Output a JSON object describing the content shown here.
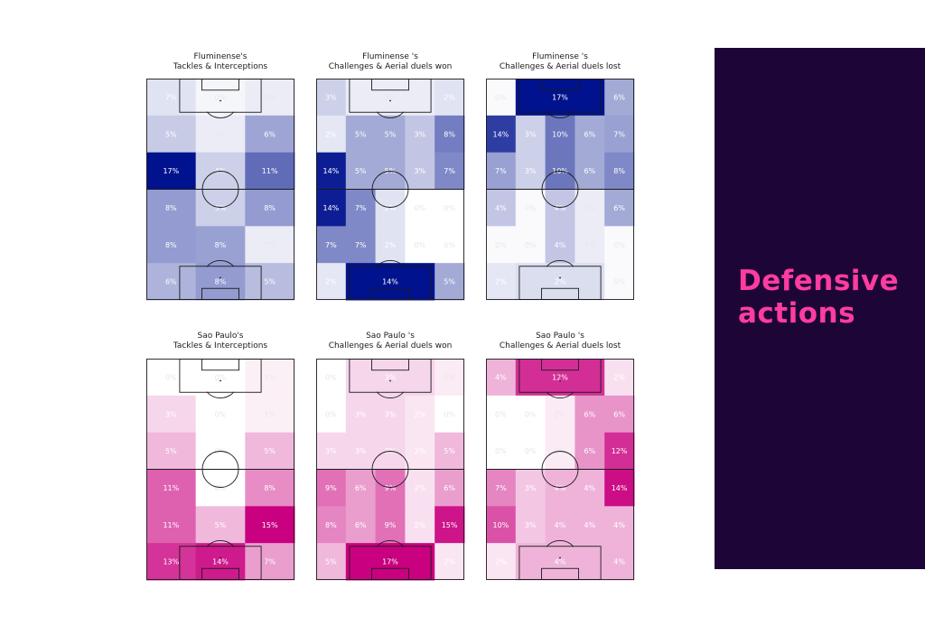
{
  "side_panel": {
    "title_line1": "Defensive",
    "title_line2": "actions",
    "bg": "#1d0637",
    "accent": "#ff3ca0"
  },
  "colors": {
    "fluminense_scale": [
      "#ffffff",
      "#00128e"
    ],
    "saopaulo_scale": [
      "#ffffff",
      "#c9007f"
    ]
  },
  "chart_data": [
    {
      "type": "heatmap",
      "team": "fluminense",
      "title_line1": "Fluminense's",
      "title_line2": "Tackles & Interceptions",
      "rows": [
        {
          "cols": [
            {
              "w": 1,
              "v": "7%",
              "i": 0.12
            },
            {
              "w": 1,
              "v": "0%",
              "i": 0.04
            },
            {
              "w": 1,
              "v": "4%",
              "i": 0.08
            }
          ]
        },
        {
          "cols": [
            {
              "w": 1,
              "v": "5%",
              "i": 0.22
            },
            {
              "w": 1,
              "v": "4%",
              "i": 0.08
            },
            {
              "w": 1,
              "v": "6%",
              "i": 0.38
            }
          ]
        },
        {
          "cols": [
            {
              "w": 1,
              "v": "17%",
              "i": 1.0
            },
            {
              "w": 1,
              "v": "4%",
              "i": 0.2
            },
            {
              "w": 1,
              "v": "11%",
              "i": 0.62
            }
          ]
        },
        {
          "cols": [
            {
              "w": 1,
              "v": "8%",
              "i": 0.42
            },
            {
              "w": 1,
              "v": "3%",
              "i": 0.2
            },
            {
              "w": 1,
              "v": "8%",
              "i": 0.42
            }
          ]
        },
        {
          "cols": [
            {
              "w": 1,
              "v": "8%",
              "i": 0.42
            },
            {
              "w": 1,
              "v": "8%",
              "i": 0.4
            },
            {
              "w": 1,
              "v": "2%",
              "i": 0.08
            }
          ]
        },
        {
          "cols": [
            {
              "w": 1,
              "v": "6%",
              "i": 0.32
            },
            {
              "w": 1,
              "v": "8%",
              "i": 0.42
            },
            {
              "w": 1,
              "v": "5%",
              "i": 0.28
            }
          ]
        }
      ]
    },
    {
      "type": "heatmap",
      "team": "fluminense",
      "title_line1": "Fluminense 's",
      "title_line2": "Challenges & Aerial duels won",
      "rows": [
        {
          "cols": [
            {
              "w": 1,
              "v": "3%",
              "i": 0.2
            },
            {
              "w": 3,
              "v": "3%",
              "i": 0.08
            },
            {
              "w": 1,
              "v": "2%",
              "i": 0.12
            }
          ]
        },
        {
          "cols": [
            {
              "w": 1,
              "v": "2%",
              "i": 0.1
            },
            {
              "w": 1,
              "v": "5%",
              "i": 0.36
            },
            {
              "w": 1,
              "v": "5%",
              "i": 0.36
            },
            {
              "w": 1,
              "v": "3%",
              "i": 0.24
            },
            {
              "w": 1,
              "v": "8%",
              "i": 0.55
            }
          ]
        },
        {
          "cols": [
            {
              "w": 1,
              "v": "14%",
              "i": 0.95
            },
            {
              "w": 1,
              "v": "5%",
              "i": 0.36
            },
            {
              "w": 1,
              "v": "5%",
              "i": 0.36
            },
            {
              "w": 1,
              "v": "3%",
              "i": 0.24
            },
            {
              "w": 1,
              "v": "7%",
              "i": 0.5
            }
          ]
        },
        {
          "cols": [
            {
              "w": 1,
              "v": "14%",
              "i": 0.95
            },
            {
              "w": 1,
              "v": "7%",
              "i": 0.5
            },
            {
              "w": 1,
              "v": "2%",
              "i": 0.12
            },
            {
              "w": 1,
              "v": "0%",
              "i": 0.0
            },
            {
              "w": 1,
              "v": "0%",
              "i": 0.0
            }
          ]
        },
        {
          "cols": [
            {
              "w": 1,
              "v": "7%",
              "i": 0.5
            },
            {
              "w": 1,
              "v": "7%",
              "i": 0.5
            },
            {
              "w": 1,
              "v": "2%",
              "i": 0.12
            },
            {
              "w": 1,
              "v": "0%",
              "i": 0.0
            },
            {
              "w": 1,
              "v": "0%",
              "i": 0.0
            }
          ]
        },
        {
          "cols": [
            {
              "w": 1,
              "v": "2%",
              "i": 0.1
            },
            {
              "w": 3,
              "v": "14%",
              "i": 1.0
            },
            {
              "w": 1,
              "v": "5%",
              "i": 0.36
            }
          ]
        }
      ]
    },
    {
      "type": "heatmap",
      "team": "fluminense",
      "title_line1": "Fluminense 's",
      "title_line2": "Challenges & Aerial duels lost",
      "rows": [
        {
          "cols": [
            {
              "w": 1,
              "v": "0%",
              "i": 0.02
            },
            {
              "w": 3,
              "v": "17%",
              "i": 1.0
            },
            {
              "w": 1,
              "v": "6%",
              "i": 0.36
            }
          ]
        },
        {
          "cols": [
            {
              "w": 1,
              "v": "14%",
              "i": 0.82
            },
            {
              "w": 1,
              "v": "3%",
              "i": 0.2
            },
            {
              "w": 1,
              "v": "10%",
              "i": 0.58
            },
            {
              "w": 1,
              "v": "6%",
              "i": 0.36
            },
            {
              "w": 1,
              "v": "7%",
              "i": 0.4
            }
          ]
        },
        {
          "cols": [
            {
              "w": 1,
              "v": "7%",
              "i": 0.4
            },
            {
              "w": 1,
              "v": "3%",
              "i": 0.2
            },
            {
              "w": 1,
              "v": "10%",
              "i": 0.58
            },
            {
              "w": 1,
              "v": "6%",
              "i": 0.36
            },
            {
              "w": 1,
              "v": "8%",
              "i": 0.5
            }
          ]
        },
        {
          "cols": [
            {
              "w": 1,
              "v": "4%",
              "i": 0.24
            },
            {
              "w": 1,
              "v": "0%",
              "i": 0.02
            },
            {
              "w": 1,
              "v": "4%",
              "i": 0.24
            },
            {
              "w": 1,
              "v": "1%",
              "i": 0.08
            },
            {
              "w": 1,
              "v": "6%",
              "i": 0.36
            }
          ]
        },
        {
          "cols": [
            {
              "w": 1,
              "v": "0%",
              "i": 0.02
            },
            {
              "w": 1,
              "v": "0%",
              "i": 0.02
            },
            {
              "w": 1,
              "v": "4%",
              "i": 0.24
            },
            {
              "w": 1,
              "v": "1%",
              "i": 0.08
            },
            {
              "w": 1,
              "v": "0%",
              "i": 0.02
            }
          ]
        },
        {
          "cols": [
            {
              "w": 1,
              "v": "2%",
              "i": 0.1
            },
            {
              "w": 3,
              "v": "2%",
              "i": 0.14
            },
            {
              "w": 1,
              "v": "0%",
              "i": 0.02
            }
          ]
        }
      ]
    },
    {
      "type": "heatmap",
      "team": "saopaulo",
      "title_line1": "Sao Paulo's",
      "title_line2": "Tackles & Interceptions",
      "rows": [
        {
          "cols": [
            {
              "w": 1,
              "v": "0%",
              "i": 0.0
            },
            {
              "w": 1,
              "v": "0%",
              "i": 0.0
            },
            {
              "w": 1,
              "v": "1%",
              "i": 0.06
            }
          ]
        },
        {
          "cols": [
            {
              "w": 1,
              "v": "3%",
              "i": 0.16
            },
            {
              "w": 1,
              "v": "0%",
              "i": 0.0
            },
            {
              "w": 1,
              "v": "1%",
              "i": 0.06
            }
          ]
        },
        {
          "cols": [
            {
              "w": 1,
              "v": "5%",
              "i": 0.28
            },
            {
              "w": 1,
              "v": "0%",
              "i": 0.0
            },
            {
              "w": 1,
              "v": "5%",
              "i": 0.28
            }
          ]
        },
        {
          "cols": [
            {
              "w": 1,
              "v": "11%",
              "i": 0.62
            },
            {
              "w": 1,
              "v": "0%",
              "i": 0.0
            },
            {
              "w": 1,
              "v": "8%",
              "i": 0.45
            }
          ]
        },
        {
          "cols": [
            {
              "w": 1,
              "v": "11%",
              "i": 0.62
            },
            {
              "w": 1,
              "v": "5%",
              "i": 0.28
            },
            {
              "w": 1,
              "v": "15%",
              "i": 1.0
            }
          ]
        },
        {
          "cols": [
            {
              "w": 1,
              "v": "13%",
              "i": 0.8
            },
            {
              "w": 1,
              "v": "14%",
              "i": 0.9
            },
            {
              "w": 1,
              "v": "7%",
              "i": 0.38
            }
          ]
        }
      ]
    },
    {
      "type": "heatmap",
      "team": "saopaulo",
      "title_line1": "Sao Paulo 's",
      "title_line2": "Challenges & Aerial duels won",
      "rows": [
        {
          "cols": [
            {
              "w": 1,
              "v": "0%",
              "i": 0.0
            },
            {
              "w": 3,
              "v": "3%",
              "i": 0.16
            },
            {
              "w": 1,
              "v": "2%",
              "i": 0.08
            }
          ]
        },
        {
          "cols": [
            {
              "w": 1,
              "v": "0%",
              "i": 0.0
            },
            {
              "w": 1,
              "v": "3%",
              "i": 0.16
            },
            {
              "w": 1,
              "v": "3%",
              "i": 0.16
            },
            {
              "w": 1,
              "v": "2%",
              "i": 0.1
            },
            {
              "w": 1,
              "v": "0%",
              "i": 0.0
            }
          ]
        },
        {
          "cols": [
            {
              "w": 1,
              "v": "3%",
              "i": 0.16
            },
            {
              "w": 1,
              "v": "3%",
              "i": 0.16
            },
            {
              "w": 1,
              "v": "3%",
              "i": 0.16
            },
            {
              "w": 1,
              "v": "2%",
              "i": 0.1
            },
            {
              "w": 1,
              "v": "5%",
              "i": 0.28
            }
          ]
        },
        {
          "cols": [
            {
              "w": 1,
              "v": "9%",
              "i": 0.56
            },
            {
              "w": 1,
              "v": "6%",
              "i": 0.38
            },
            {
              "w": 1,
              "v": "9%",
              "i": 0.56
            },
            {
              "w": 1,
              "v": "2%",
              "i": 0.12
            },
            {
              "w": 1,
              "v": "6%",
              "i": 0.38
            }
          ]
        },
        {
          "cols": [
            {
              "w": 1,
              "v": "8%",
              "i": 0.48
            },
            {
              "w": 1,
              "v": "6%",
              "i": 0.38
            },
            {
              "w": 1,
              "v": "9%",
              "i": 0.56
            },
            {
              "w": 1,
              "v": "2%",
              "i": 0.12
            },
            {
              "w": 1,
              "v": "15%",
              "i": 0.92
            }
          ]
        },
        {
          "cols": [
            {
              "w": 1,
              "v": "5%",
              "i": 0.28
            },
            {
              "w": 3,
              "v": "17%",
              "i": 1.0
            },
            {
              "w": 1,
              "v": "2%",
              "i": 0.1
            }
          ]
        }
      ]
    },
    {
      "type": "heatmap",
      "team": "saopaulo",
      "title_line1": "Sao Paulo 's",
      "title_line2": "Challenges & Aerial duels lost",
      "rows": [
        {
          "cols": [
            {
              "w": 1,
              "v": "4%",
              "i": 0.3
            },
            {
              "w": 3,
              "v": "12%",
              "i": 0.82
            },
            {
              "w": 1,
              "v": "2%",
              "i": 0.12
            }
          ]
        },
        {
          "cols": [
            {
              "w": 1,
              "v": "0%",
              "i": 0.0
            },
            {
              "w": 1,
              "v": "0%",
              "i": 0.0
            },
            {
              "w": 1,
              "v": "2%",
              "i": 0.08
            },
            {
              "w": 1,
              "v": "6%",
              "i": 0.42
            },
            {
              "w": 1,
              "v": "6%",
              "i": 0.42
            }
          ]
        },
        {
          "cols": [
            {
              "w": 1,
              "v": "0%",
              "i": 0.0
            },
            {
              "w": 1,
              "v": "0%",
              "i": 0.0
            },
            {
              "w": 1,
              "v": "2%",
              "i": 0.08
            },
            {
              "w": 1,
              "v": "6%",
              "i": 0.42
            },
            {
              "w": 1,
              "v": "12%",
              "i": 0.82
            }
          ]
        },
        {
          "cols": [
            {
              "w": 1,
              "v": "7%",
              "i": 0.48
            },
            {
              "w": 1,
              "v": "3%",
              "i": 0.22
            },
            {
              "w": 1,
              "v": "4%",
              "i": 0.3
            },
            {
              "w": 1,
              "v": "4%",
              "i": 0.3
            },
            {
              "w": 1,
              "v": "14%",
              "i": 0.95
            }
          ]
        },
        {
          "cols": [
            {
              "w": 1,
              "v": "10%",
              "i": 0.68
            },
            {
              "w": 1,
              "v": "3%",
              "i": 0.22
            },
            {
              "w": 1,
              "v": "4%",
              "i": 0.3
            },
            {
              "w": 1,
              "v": "4%",
              "i": 0.3
            },
            {
              "w": 1,
              "v": "4%",
              "i": 0.3
            }
          ]
        },
        {
          "cols": [
            {
              "w": 1,
              "v": "2%",
              "i": 0.1
            },
            {
              "w": 3,
              "v": "4%",
              "i": 0.3
            },
            {
              "w": 1,
              "v": "4%",
              "i": 0.3
            }
          ]
        }
      ]
    }
  ]
}
